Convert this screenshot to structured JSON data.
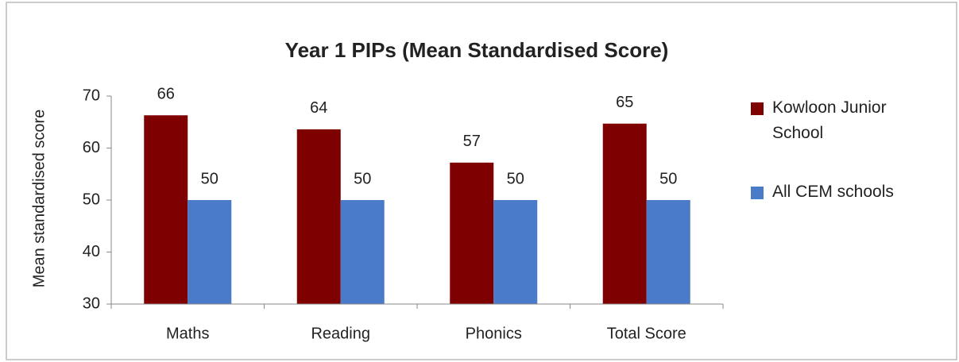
{
  "chart_data": {
    "type": "bar",
    "title": "Year 1 PIPs (Mean Standardised Score)",
    "y_label": "Mean standardised score",
    "categories": [
      "Maths",
      "Reading",
      "Phonics",
      "Total Score"
    ],
    "series": [
      {
        "name": "Kowloon Junior School",
        "color": "#7f0000",
        "values": [
          66.3,
          63.6,
          57.2,
          64.7
        ],
        "value_labels": [
          "66",
          "64",
          "57",
          "65"
        ]
      },
      {
        "name": "All CEM schools",
        "color": "#4a7bc8",
        "values": [
          50,
          50,
          50,
          50
        ]
      }
    ],
    "ylim": [
      30,
      70
    ],
    "yticks": [
      30,
      40,
      50,
      60,
      70
    ],
    "grid": false,
    "legend": "right"
  }
}
